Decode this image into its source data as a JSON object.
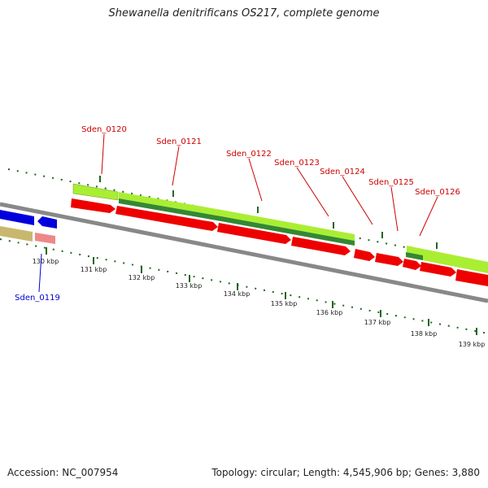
{
  "title": "Shewanella denitrificans OS217, complete genome",
  "footer": {
    "accession": "Accession: NC_007954",
    "summary": "Topology: circular; Length: 4,545,906 bp; Genes: 3,880"
  },
  "colors": {
    "cds_forward": "#ee0000",
    "cds_reverse": "#0000dd",
    "light_green": "#aaee33",
    "dark_green": "#338833",
    "olive": "#c8b86e",
    "pink": "#ee8888",
    "backbone": "#888888",
    "tick": "#226622",
    "forward_label": "#cc0000",
    "reverse_label": "#0000cc"
  },
  "axis": {
    "ticks": [
      "130 kbp",
      "131 kbp",
      "132 kbp",
      "133 kbp",
      "134 kbp",
      "135 kbp",
      "136 kbp",
      "137 kbp",
      "138 kbp",
      "139 kbp"
    ]
  },
  "gene_labels": [
    {
      "id": "Sden_0120",
      "strand": "forward"
    },
    {
      "id": "Sden_0121",
      "strand": "forward"
    },
    {
      "id": "Sden_0122",
      "strand": "forward"
    },
    {
      "id": "Sden_0123",
      "strand": "forward"
    },
    {
      "id": "Sden_0124",
      "strand": "forward"
    },
    {
      "id": "Sden_0125",
      "strand": "forward"
    },
    {
      "id": "Sden_0126",
      "strand": "forward"
    },
    {
      "id": "Sden_0119",
      "strand": "reverse"
    }
  ]
}
